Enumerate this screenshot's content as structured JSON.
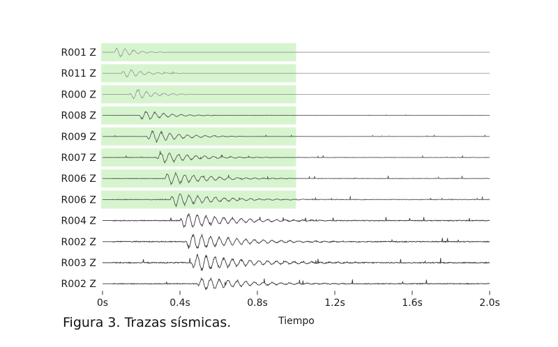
{
  "caption": "Figura 3. Trazas sísmicas.",
  "chart_data": {
    "type": "line",
    "title": "",
    "xlabel": "Tiempo",
    "ylabel": "",
    "xlim": [
      0,
      2.0
    ],
    "x_ticks": [
      0,
      0.4,
      0.8,
      1.2,
      1.6,
      2.0
    ],
    "x_tick_labels": [
      "0s",
      "0.4s",
      "0.8s",
      "1.2s",
      "1.6s",
      "2.0s"
    ],
    "grid": false,
    "highlight_window": {
      "color": "#d6f5cf",
      "x_start": 0.0,
      "x_end": 1.0,
      "traces": [
        0,
        1,
        2,
        3,
        4,
        5,
        6,
        7
      ]
    },
    "trace_color": "#333333",
    "baseline_color": "#999999",
    "series": [
      {
        "name": "R001 Z",
        "first_arrival": 0.06,
        "amplitude": 0.9,
        "duration": 0.28,
        "noise": 0.0
      },
      {
        "name": "R011 Z",
        "first_arrival": 0.1,
        "amplitude": 0.75,
        "duration": 0.32,
        "noise": 0.0
      },
      {
        "name": "R000 Z",
        "first_arrival": 0.14,
        "amplitude": 0.85,
        "duration": 0.36,
        "noise": 0.0
      },
      {
        "name": "R008 Z",
        "first_arrival": 0.19,
        "amplitude": 0.8,
        "duration": 0.4,
        "noise": 0.05
      },
      {
        "name": "R009 Z",
        "first_arrival": 0.23,
        "amplitude": 0.95,
        "duration": 0.5,
        "noise": 0.1
      },
      {
        "name": "R007 Z",
        "first_arrival": 0.28,
        "amplitude": 0.85,
        "duration": 0.6,
        "noise": 0.18
      },
      {
        "name": "R006 Z",
        "first_arrival": 0.32,
        "amplitude": 0.95,
        "duration": 0.65,
        "noise": 0.22
      },
      {
        "name": "R006 Z",
        "first_arrival": 0.35,
        "amplitude": 0.95,
        "duration": 0.7,
        "noise": 0.28
      },
      {
        "name": "R004 Z",
        "first_arrival": 0.4,
        "amplitude": 1.1,
        "duration": 0.8,
        "noise": 0.35
      },
      {
        "name": "R002 Z",
        "first_arrival": 0.43,
        "amplitude": 1.15,
        "duration": 0.85,
        "noise": 0.4
      },
      {
        "name": "R003 Z",
        "first_arrival": 0.46,
        "amplitude": 1.2,
        "duration": 0.85,
        "noise": 0.45
      },
      {
        "name": "R002 Z",
        "first_arrival": 0.49,
        "amplitude": 0.9,
        "duration": 0.8,
        "noise": 0.35
      }
    ]
  }
}
